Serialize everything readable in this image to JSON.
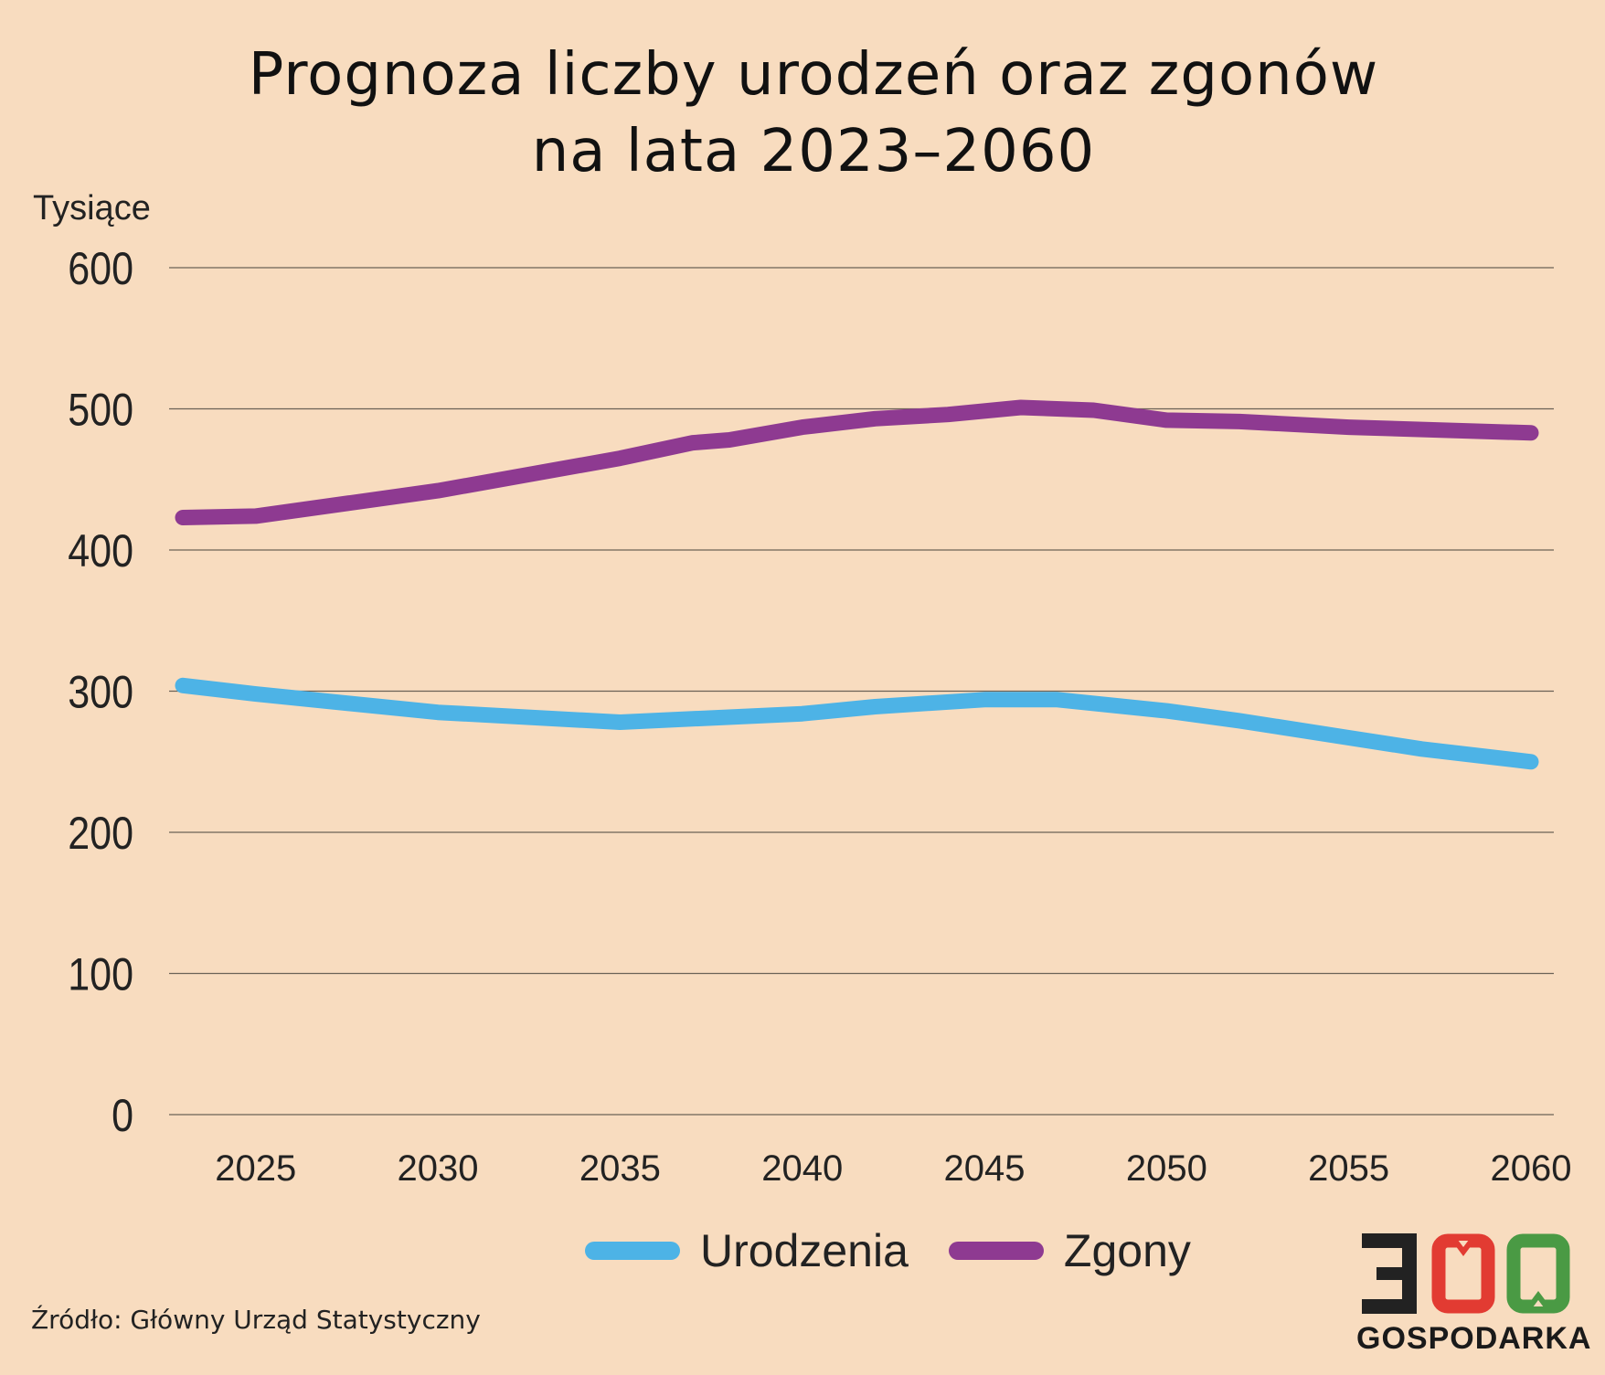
{
  "title_line1": "Prognoza liczby urodzeń oraz zgonów",
  "title_line2": "na lata 2023–2060",
  "source": "Źródło: Główny Urząd Statystyczny",
  "logo": {
    "number": "300",
    "word": "GOSPODARKA",
    "colors": [
      "#222222",
      "#e23b32",
      "#4a9a44"
    ]
  },
  "chart_data": {
    "type": "line",
    "ylabel": "Tysiące",
    "xlabel": "",
    "ylim": [
      0,
      600
    ],
    "yticks": [
      0,
      100,
      200,
      300,
      400,
      500,
      600
    ],
    "xlim": [
      2023,
      2060
    ],
    "xticks": [
      2025,
      2030,
      2035,
      2040,
      2045,
      2050,
      2055,
      2060
    ],
    "grid": true,
    "legend_position": "bottom",
    "series": [
      {
        "name": "Urodzenia",
        "color": "#4db3e6",
        "x": [
          2023,
          2025,
          2030,
          2035,
          2040,
          2042,
          2045,
          2047,
          2050,
          2052,
          2055,
          2057,
          2060
        ],
        "values": [
          304,
          298,
          285,
          278,
          284,
          289,
          294,
          294,
          286,
          279,
          267,
          259,
          250
        ]
      },
      {
        "name": "Zgony",
        "color": "#8e3a91",
        "x": [
          2023,
          2025,
          2030,
          2035,
          2037,
          2038,
          2040,
          2042,
          2044,
          2046,
          2048,
          2050,
          2052,
          2055,
          2060
        ],
        "values": [
          423,
          424,
          442,
          465,
          476,
          478,
          487,
          493,
          496,
          501,
          499,
          492,
          491,
          487,
          483
        ]
      }
    ]
  }
}
